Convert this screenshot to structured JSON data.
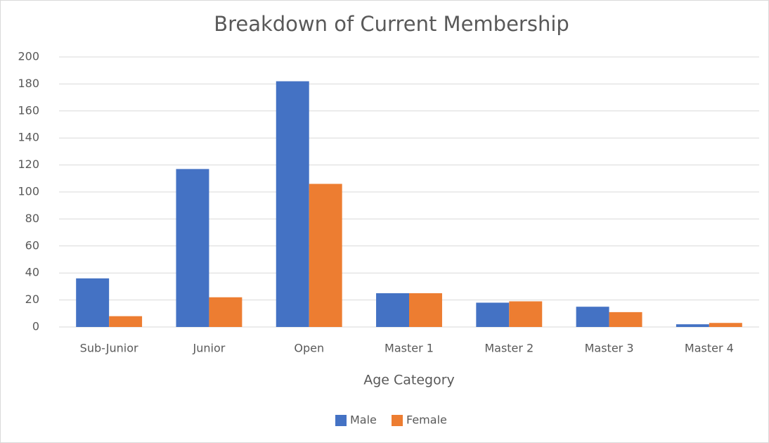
{
  "chart_data": {
    "type": "bar",
    "title": "Breakdown of Current Membership",
    "x_label": "Age Category",
    "categories": [
      "Sub-Junior",
      "Junior",
      "Open",
      "Master 1",
      "Master 2",
      "Master 3",
      "Master 4"
    ],
    "series": [
      {
        "name": "Male",
        "color": "#4472c4",
        "values": [
          36,
          117,
          182,
          25,
          18,
          15,
          2
        ]
      },
      {
        "name": "Female",
        "color": "#ed7d31",
        "values": [
          8,
          22,
          106,
          25,
          19,
          11,
          3
        ]
      }
    ],
    "ylim": [
      0,
      200
    ],
    "yticks": [
      0,
      20,
      40,
      60,
      80,
      100,
      120,
      140,
      160,
      180,
      200
    ],
    "grid": true,
    "legend": "bottom"
  }
}
